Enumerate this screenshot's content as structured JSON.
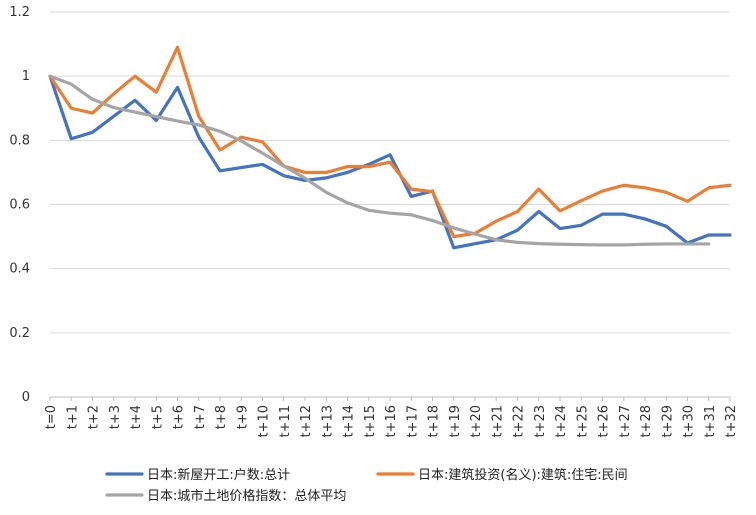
{
  "chart_data": {
    "type": "line",
    "title": "",
    "xlabel": "",
    "ylabel": "",
    "ylim": [
      0,
      1.2
    ],
    "yticks": [
      "0",
      "0.2",
      "0.4",
      "0.6",
      "0.8",
      "1",
      "1.2"
    ],
    "grid": true,
    "legend_position": "bottom",
    "categories": [
      "t=0",
      "t+1",
      "t+2",
      "t+3",
      "t+4",
      "t+5",
      "t+6",
      "t+7",
      "t+8",
      "t+9",
      "t+10",
      "t+11",
      "t+12",
      "t+13",
      "t+14",
      "t+15",
      "t+16",
      "t+17",
      "t+18",
      "t+19",
      "t+20",
      "t+21",
      "t+22",
      "t+23",
      "t+24",
      "t+25",
      "t+26",
      "t+27",
      "t+28",
      "t+29",
      "t+30",
      "t+31",
      "t+32"
    ],
    "series": [
      {
        "name": "日本:新屋开工:户数:总计",
        "color": "#4472C4",
        "values": [
          1.0,
          0.805,
          0.825,
          0.875,
          0.925,
          0.862,
          0.965,
          0.81,
          0.705,
          0.715,
          0.725,
          0.69,
          0.675,
          0.683,
          0.7,
          0.725,
          0.755,
          0.625,
          0.642,
          0.465,
          0.478,
          0.49,
          0.52,
          0.578,
          0.525,
          0.535,
          0.57,
          0.57,
          0.555,
          0.532,
          0.48,
          0.505,
          0.505
        ]
      },
      {
        "name": "日本:建筑投资(名义):建筑:住宅:民间",
        "color": "#ED7D31",
        "values": [
          1.0,
          0.9,
          0.885,
          0.945,
          1.0,
          0.95,
          1.09,
          0.875,
          0.77,
          0.81,
          0.795,
          0.72,
          0.7,
          0.7,
          0.718,
          0.718,
          0.732,
          0.648,
          0.64,
          0.5,
          0.51,
          0.548,
          0.578,
          0.648,
          0.58,
          0.612,
          0.642,
          0.66,
          0.652,
          0.638,
          0.61,
          0.652,
          0.66
        ]
      },
      {
        "name": "日本:城市土地价格指数：总体平均",
        "color": "#A5A5A5",
        "values": [
          1.0,
          0.975,
          0.928,
          0.902,
          0.888,
          0.874,
          0.86,
          0.848,
          0.828,
          0.798,
          0.76,
          0.72,
          0.682,
          0.638,
          0.605,
          0.582,
          0.573,
          0.568,
          0.55,
          0.527,
          0.508,
          0.49,
          0.482,
          0.478,
          0.476,
          0.475,
          0.474,
          0.474,
          0.476,
          0.477,
          0.477,
          0.477,
          null
        ]
      }
    ]
  }
}
